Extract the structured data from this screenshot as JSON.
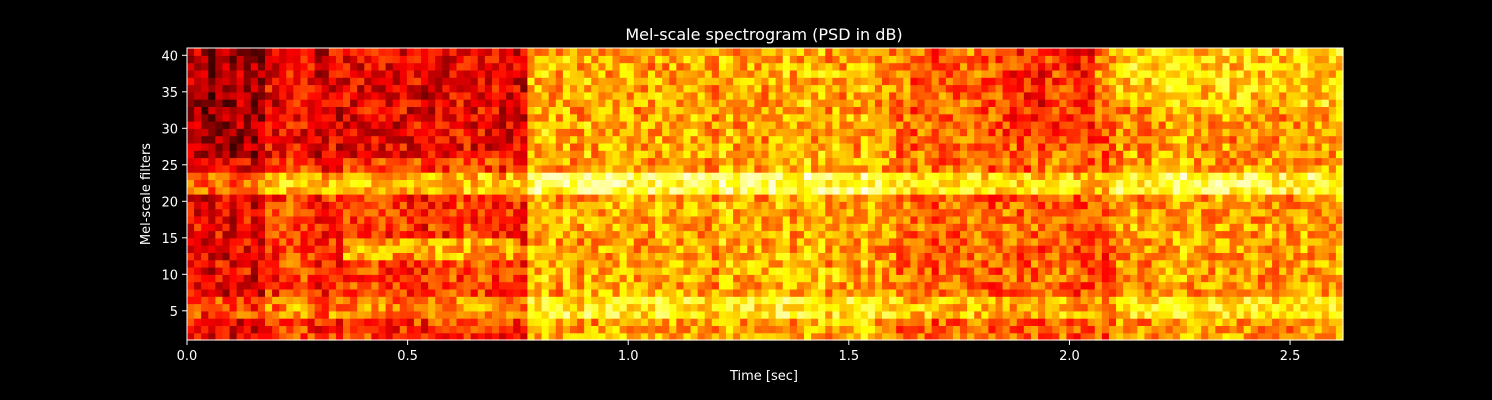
{
  "chart_data": {
    "type": "heatmap",
    "title": "Mel-scale spectrogram (PSD in dB)",
    "xlabel": "Time [sec]",
    "ylabel": "Mel-scale filters",
    "xlim": [
      0.0,
      2.62
    ],
    "ylim": [
      1,
      41
    ],
    "x_ticks": [
      "0.0",
      "0.5",
      "1.0",
      "1.5",
      "2.0",
      "2.5"
    ],
    "y_ticks": [
      "5",
      "10",
      "15",
      "20",
      "25",
      "30",
      "35",
      "40"
    ],
    "colormap": "hot",
    "grid": false,
    "n_filters": 40,
    "n_frames": 163
  }
}
